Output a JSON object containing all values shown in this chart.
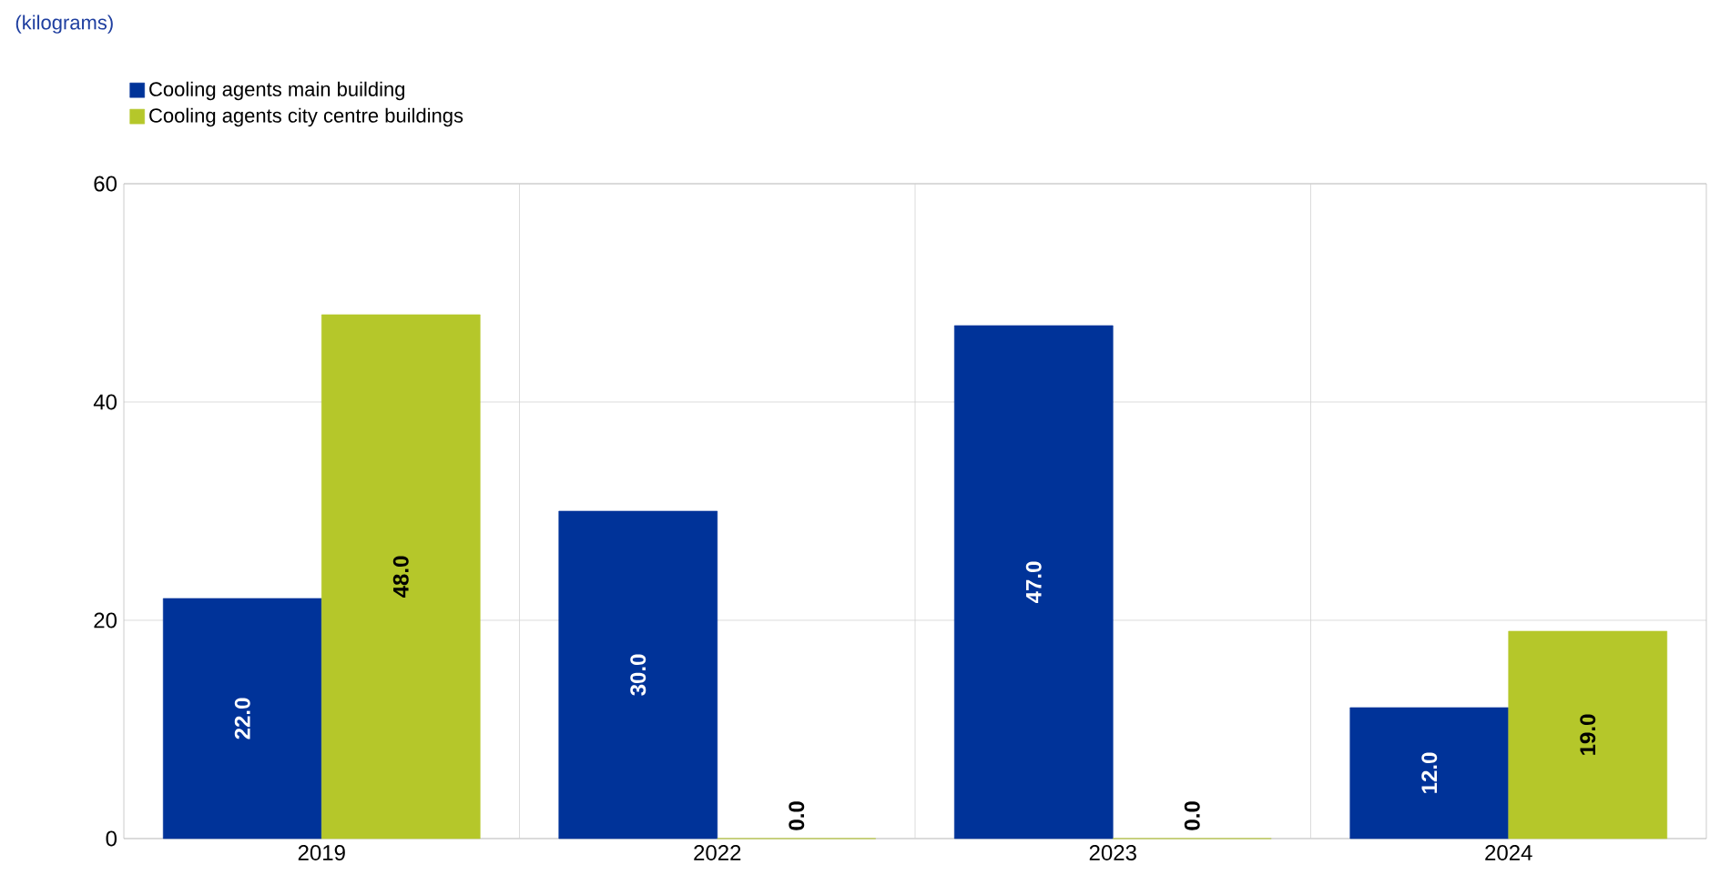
{
  "chart_data": {
    "type": "bar",
    "title": "(kilograms)",
    "categories": [
      "2019",
      "2022",
      "2023",
      "2024"
    ],
    "series": [
      {
        "name": "Cooling agents main building",
        "color": "#003399",
        "values": [
          22.0,
          30.0,
          47.0,
          12.0
        ],
        "value_labels": [
          "22.0",
          "30.0",
          "47.0",
          "12.0"
        ]
      },
      {
        "name": "Cooling agents city centre buildings",
        "color": "#b5c72a",
        "values": [
          48.0,
          0.0,
          0.0,
          19.0
        ],
        "value_labels": [
          "48.0",
          "0.0",
          "0.0",
          "19.0"
        ]
      }
    ],
    "ylim": [
      0,
      60
    ],
    "yticks": [
      0,
      20,
      40,
      60
    ],
    "grid": true,
    "legend": "top left"
  }
}
